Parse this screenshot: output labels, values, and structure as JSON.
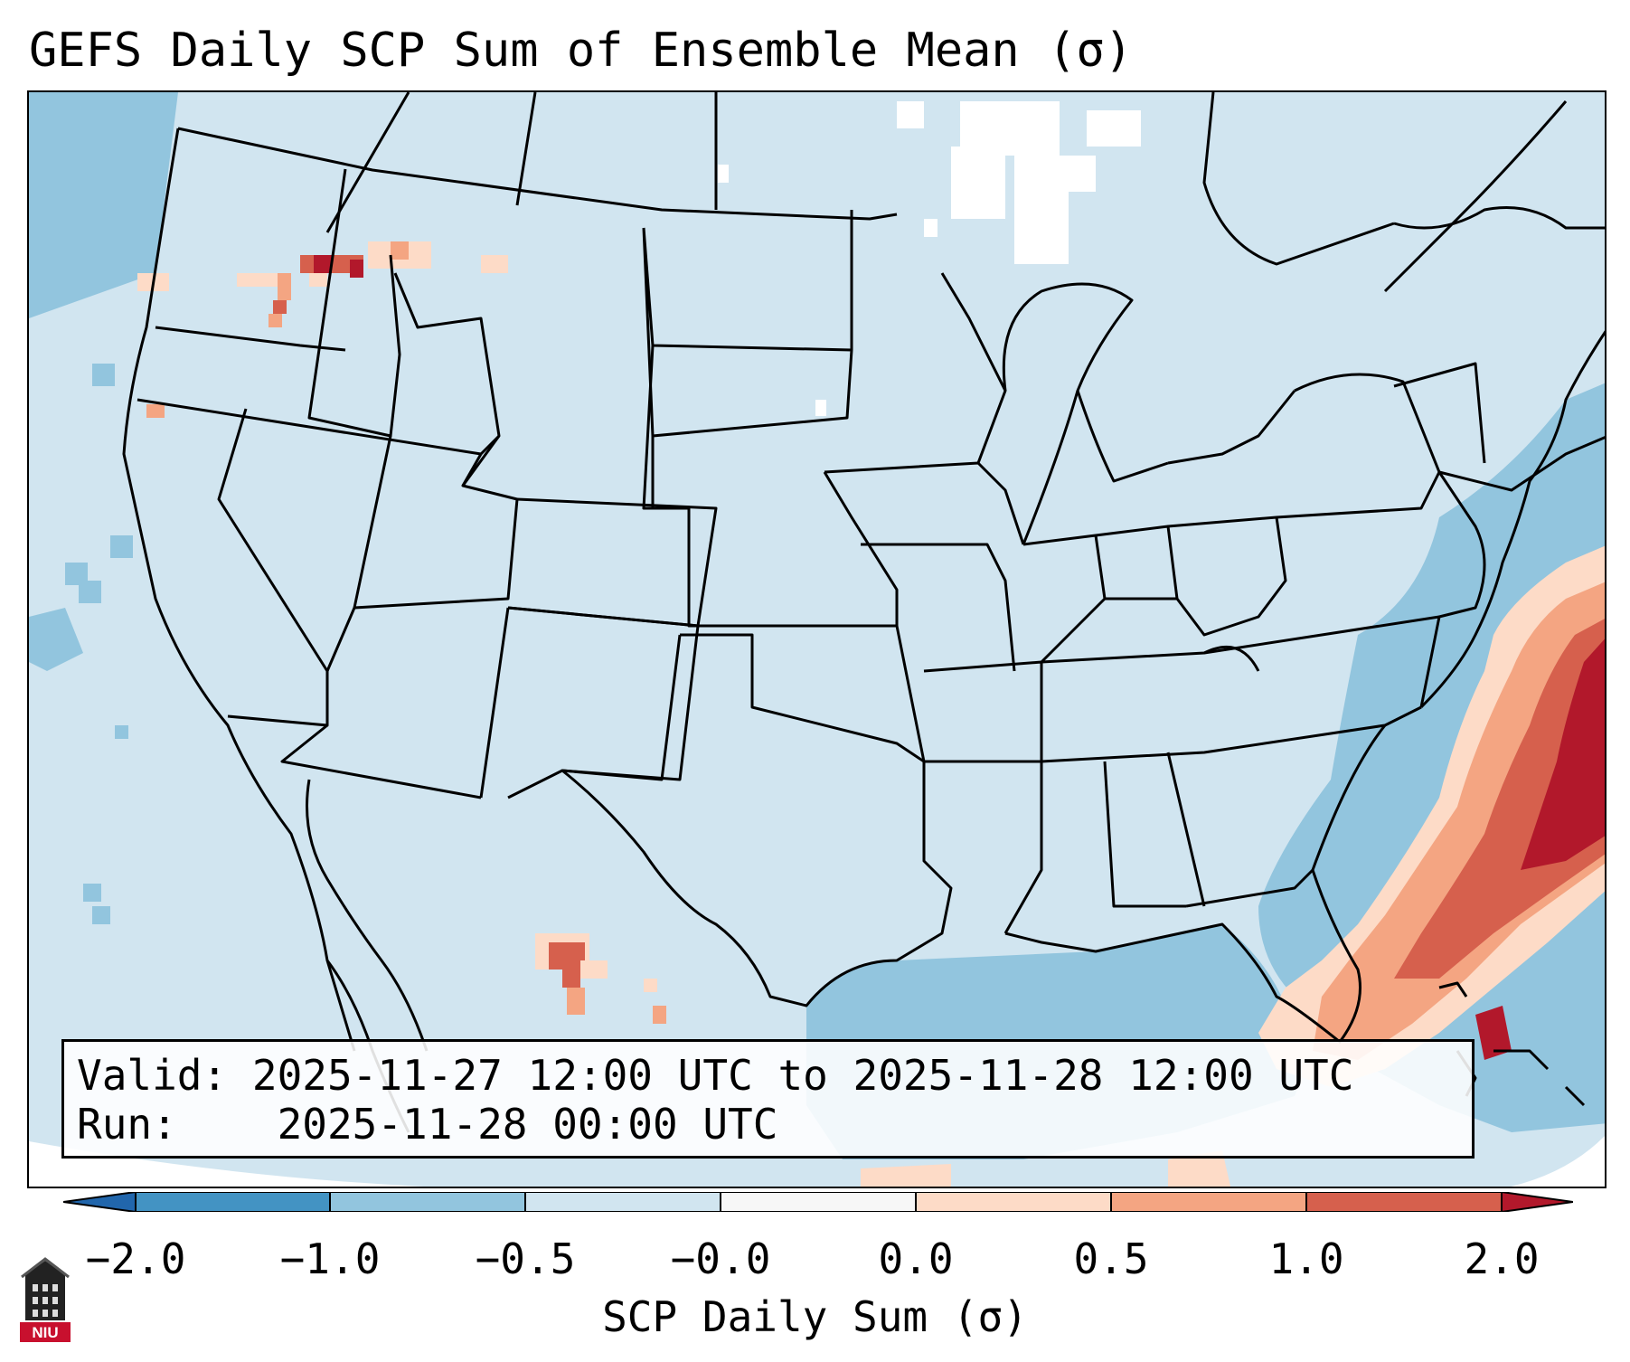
{
  "title": "GEFS Daily SCP Sum of Ensemble Mean (σ)",
  "info": {
    "valid_label": "Valid:",
    "valid_value": "2025-11-27 12:00 UTC to 2025-11-28 12:00 UTC",
    "run_label": "Run:",
    "run_value": "2025-11-28 00:00 UTC"
  },
  "colorbar": {
    "label": "SCP Daily Sum (σ)",
    "ticks": [
      "−2.0",
      "−1.0",
      "−0.5",
      "−0.0",
      "0.0",
      "0.5",
      "1.0",
      "2.0"
    ],
    "bins": [
      {
        "range": "<-2.0",
        "color": "#2166ac"
      },
      {
        "range": "-2.0 to -1.0",
        "color": "#4393c3"
      },
      {
        "range": "-1.0 to -0.5",
        "color": "#92c5de"
      },
      {
        "range": "-0.5 to -0.0",
        "color": "#d1e5f0"
      },
      {
        "range": "-0.0 to 0.0",
        "color": "#f7f7f7"
      },
      {
        "range": "0.0 to 0.5",
        "color": "#fddbc7"
      },
      {
        "range": "0.5 to 1.0",
        "color": "#f4a582"
      },
      {
        "range": "1.0 to 2.0",
        "color": "#d6604d"
      },
      {
        "range": ">2.0",
        "color": "#b2182b"
      }
    ]
  },
  "map": {
    "projection": "Lambert Conformal, CONUS",
    "land_color": "#d1e5f0",
    "ocean_color": "#92c5de"
  },
  "logo": {
    "text": "NIU"
  }
}
